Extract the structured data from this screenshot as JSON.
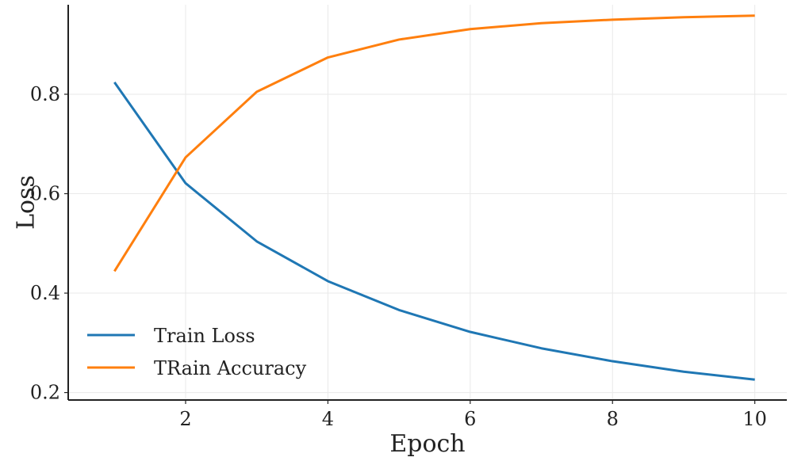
{
  "chart_data": {
    "type": "line",
    "title": "",
    "xlabel": "Epoch",
    "ylabel": "Loss",
    "x": [
      1,
      2,
      3,
      4,
      5,
      6,
      7,
      8,
      9,
      10
    ],
    "xlim": [
      0.35,
      10.45
    ],
    "ylim": [
      0.185,
      0.98
    ],
    "xticks": [
      2,
      4,
      6,
      8,
      10
    ],
    "yticks": [
      0.2,
      0.4,
      0.6,
      0.8
    ],
    "xtick_labels": [
      "2",
      "4",
      "6",
      "8",
      "10"
    ],
    "ytick_labels": [
      "0.2",
      "0.4",
      "0.6",
      "0.8"
    ],
    "grid": true,
    "legend_position": "lower-left",
    "series": [
      {
        "name": "Train Loss",
        "color": "#1f77b4",
        "values": [
          0.824,
          0.621,
          0.504,
          0.424,
          0.366,
          0.322,
          0.289,
          0.263,
          0.242,
          0.226
        ]
      },
      {
        "name": "TRain Accuracy",
        "color": "#ff7f0e",
        "values": [
          0.444,
          0.673,
          0.805,
          0.874,
          0.91,
          0.931,
          0.943,
          0.95,
          0.955,
          0.958
        ]
      }
    ]
  }
}
